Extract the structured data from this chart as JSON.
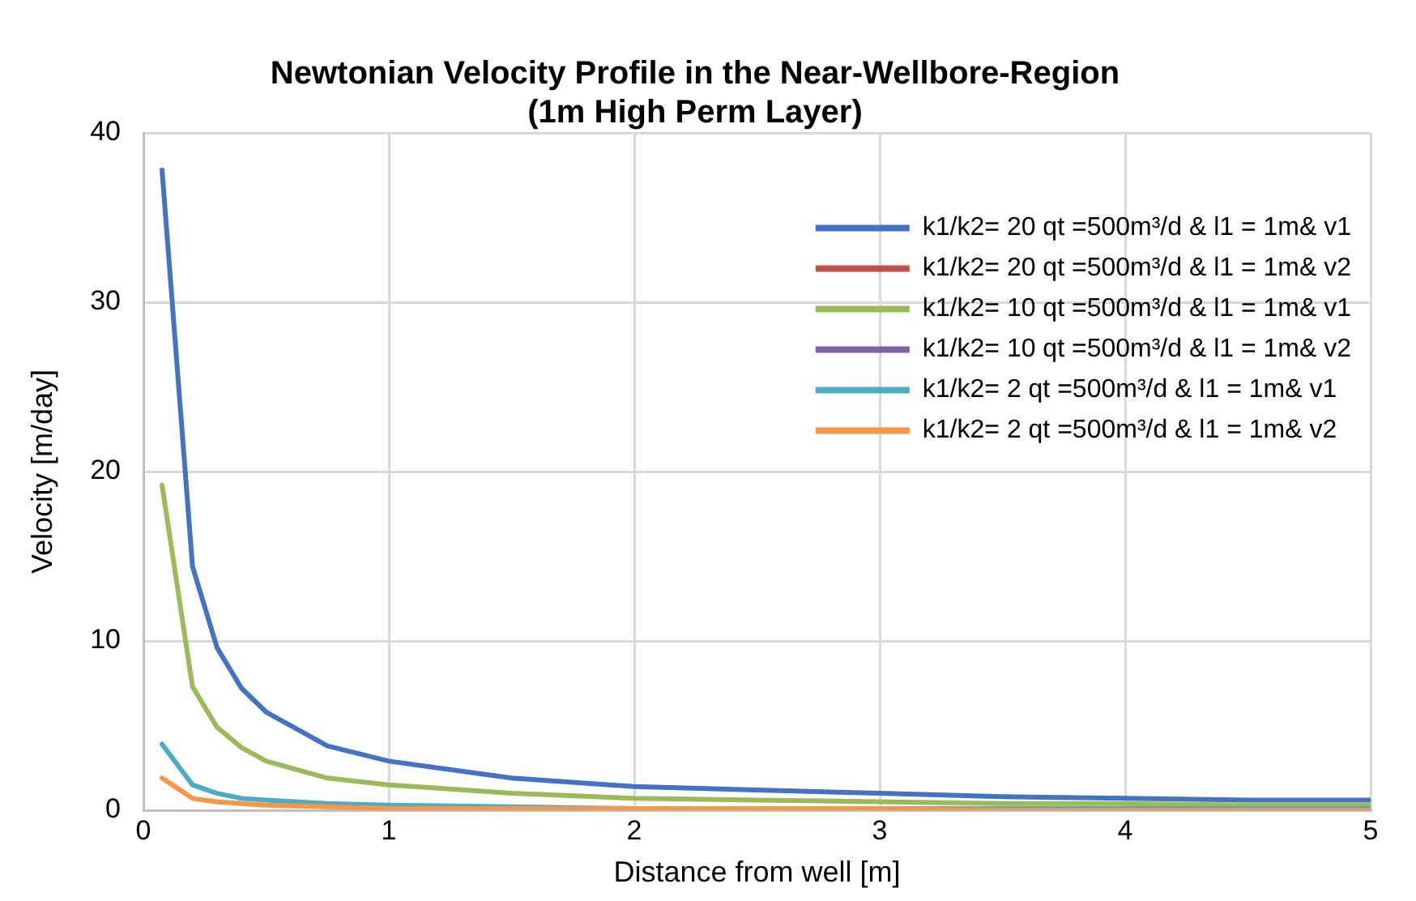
{
  "chart_data": {
    "type": "line",
    "title": "Newtonian Velocity Profile in the Near-Wellbore-Region\n(1m High Perm Layer)",
    "xlabel": "Distance from well [m]",
    "ylabel": "Velocity [m/day]",
    "x": [
      0.076,
      0.2,
      0.3,
      0.4,
      0.5,
      0.75,
      1,
      1.5,
      2,
      2.5,
      3,
      3.5,
      4,
      4.5,
      5
    ],
    "series": [
      {
        "name": "k1/k2= 20 qt =500m³/d & l1 = 1m& v1",
        "color": "#4472c4",
        "values": [
          37.8,
          14.4,
          9.6,
          7.2,
          5.8,
          3.8,
          2.9,
          1.9,
          1.4,
          1.2,
          1.0,
          0.8,
          0.7,
          0.6,
          0.6
        ]
      },
      {
        "name": "k1/k2= 20 qt =500m³/d & l1 = 1m& v2",
        "color": "#c0504d",
        "values": [
          null,
          null,
          null,
          null,
          null,
          null,
          null,
          null,
          null,
          null,
          null,
          null,
          null,
          null,
          null
        ]
      },
      {
        "name": "k1/k2= 10 qt =500m³/d & l1 = 1m& v1",
        "color": "#9bbb59",
        "values": [
          19.2,
          7.3,
          4.9,
          3.7,
          2.9,
          1.9,
          1.5,
          1.0,
          0.7,
          0.6,
          0.5,
          0.4,
          0.4,
          0.3,
          0.3
        ]
      },
      {
        "name": "k1/k2= 10 qt =500m³/d & l1 = 1m& v2",
        "color": "#8064a2",
        "values": [
          null,
          null,
          null,
          null,
          null,
          null,
          null,
          null,
          null,
          null,
          null,
          null,
          null,
          null,
          null
        ]
      },
      {
        "name": "k1/k2= 2 qt =500m³/d & l1 = 1m& v1",
        "color": "#4bacc6",
        "values": [
          3.9,
          1.5,
          1.0,
          0.7,
          0.6,
          0.4,
          0.3,
          0.2,
          0.1,
          0.1,
          0.1,
          0.1,
          0.1,
          0.1,
          0.1
        ]
      },
      {
        "name": "k1/k2= 2 qt =500m³/d & l1 = 1m& v2",
        "color": "#f79646",
        "values": [
          1.9,
          0.7,
          0.5,
          0.4,
          0.3,
          0.2,
          0.1,
          0.1,
          0.1,
          0.1,
          0.1,
          0.0,
          0.0,
          0.0,
          0.0
        ]
      }
    ],
    "xlim": [
      0,
      5
    ],
    "xticks": [
      0,
      1,
      2,
      3,
      4,
      5
    ],
    "ylim": [
      0,
      40
    ],
    "yticks": [
      0,
      10,
      20,
      30,
      40
    ],
    "grid": true,
    "legend": "top right",
    "marker": "none",
    "line_style": "solid"
  }
}
